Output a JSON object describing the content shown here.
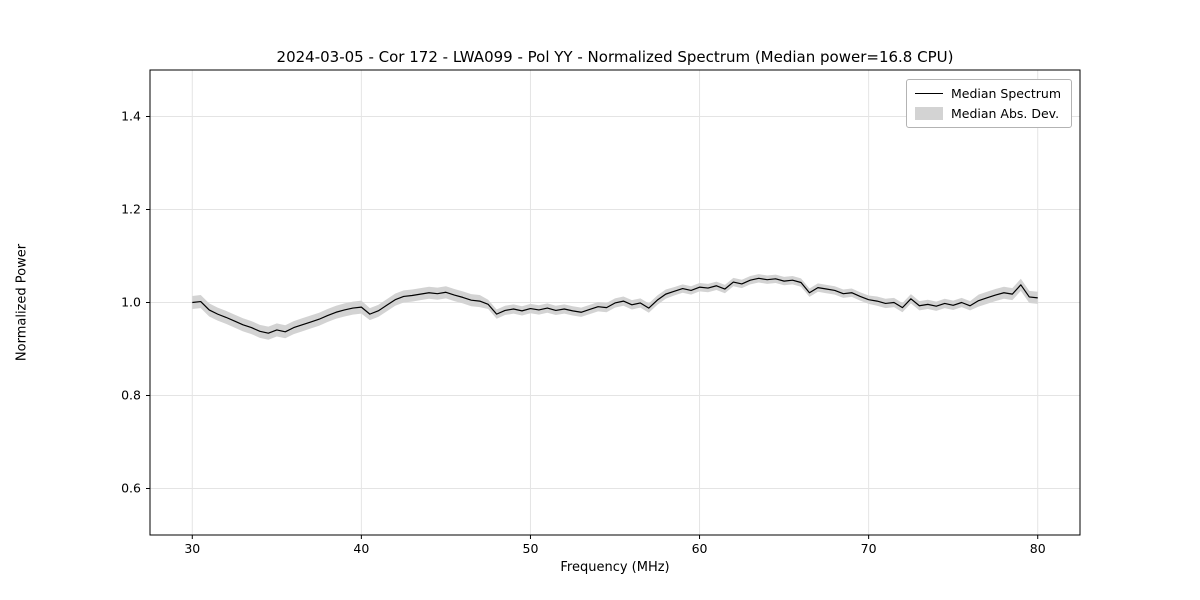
{
  "chart_data": {
    "type": "line",
    "title": "2024-03-05 - Cor 172 - LWA099 - Pol YY - Normalized Spectrum (Median power=16.8 CPU)",
    "xlabel": "Frequency (MHz)",
    "ylabel": "Normalized Power",
    "xlim": [
      27.5,
      82.5
    ],
    "ylim": [
      0.5,
      1.5
    ],
    "xticks": [
      30,
      40,
      50,
      60,
      70,
      80
    ],
    "yticks": [
      0.6,
      0.8,
      1.0,
      1.2,
      1.4
    ],
    "grid": true,
    "legend_position": "upper right",
    "series": [
      {
        "name": "Median Spectrum",
        "type": "line",
        "color": "#000000",
        "x": [
          30.0,
          30.5,
          31.0,
          31.5,
          32.0,
          32.5,
          33.0,
          33.5,
          34.0,
          34.5,
          35.0,
          35.5,
          36.0,
          36.5,
          37.0,
          37.5,
          38.0,
          38.5,
          39.0,
          39.5,
          40.0,
          40.5,
          41.0,
          41.5,
          42.0,
          42.5,
          43.0,
          43.5,
          44.0,
          44.5,
          45.0,
          45.5,
          46.0,
          46.5,
          47.0,
          47.5,
          48.0,
          48.5,
          49.0,
          49.5,
          50.0,
          50.5,
          51.0,
          51.5,
          52.0,
          52.5,
          53.0,
          53.5,
          54.0,
          54.5,
          55.0,
          55.5,
          56.0,
          56.5,
          57.0,
          57.5,
          58.0,
          58.5,
          59.0,
          59.5,
          60.0,
          60.5,
          61.0,
          61.5,
          62.0,
          62.5,
          63.0,
          63.5,
          64.0,
          64.5,
          65.0,
          65.5,
          66.0,
          66.5,
          67.0,
          67.5,
          68.0,
          68.5,
          69.0,
          69.5,
          70.0,
          70.5,
          71.0,
          71.5,
          72.0,
          72.5,
          73.0,
          73.5,
          74.0,
          74.5,
          75.0,
          75.5,
          76.0,
          76.5,
          77.0,
          77.5,
          78.0,
          78.5,
          79.0,
          79.5,
          80.0
        ],
        "y": [
          1.0,
          1.002,
          0.984,
          0.975,
          0.968,
          0.96,
          0.952,
          0.946,
          0.938,
          0.934,
          0.941,
          0.937,
          0.946,
          0.952,
          0.958,
          0.964,
          0.972,
          0.979,
          0.984,
          0.988,
          0.99,
          0.975,
          0.982,
          0.994,
          1.006,
          1.013,
          1.015,
          1.018,
          1.021,
          1.019,
          1.022,
          1.016,
          1.011,
          1.005,
          1.003,
          0.996,
          0.975,
          0.983,
          0.986,
          0.982,
          0.987,
          0.984,
          0.988,
          0.983,
          0.986,
          0.982,
          0.979,
          0.985,
          0.991,
          0.989,
          0.999,
          1.003,
          0.995,
          0.999,
          0.988,
          1.005,
          1.018,
          1.024,
          1.03,
          1.026,
          1.033,
          1.031,
          1.036,
          1.029,
          1.044,
          1.04,
          1.048,
          1.052,
          1.049,
          1.051,
          1.046,
          1.048,
          1.043,
          1.021,
          1.032,
          1.029,
          1.026,
          1.019,
          1.021,
          1.013,
          1.006,
          1.003,
          0.998,
          1.0,
          0.989,
          1.008,
          0.993,
          0.996,
          0.992,
          0.998,
          0.994,
          1.0,
          0.993,
          1.004,
          1.01,
          1.016,
          1.021,
          1.018,
          1.038,
          1.012,
          1.01
        ]
      },
      {
        "name": "Median Abs. Dev.",
        "type": "band",
        "color": "#d3d3d3",
        "mad": [
          0.014,
          0.014,
          0.014,
          0.014,
          0.014,
          0.014,
          0.014,
          0.014,
          0.014,
          0.014,
          0.014,
          0.014,
          0.014,
          0.014,
          0.014,
          0.014,
          0.014,
          0.014,
          0.014,
          0.014,
          0.014,
          0.013,
          0.013,
          0.013,
          0.013,
          0.013,
          0.013,
          0.013,
          0.013,
          0.013,
          0.013,
          0.013,
          0.013,
          0.013,
          0.013,
          0.01,
          0.01,
          0.01,
          0.01,
          0.01,
          0.01,
          0.01,
          0.01,
          0.01,
          0.01,
          0.01,
          0.01,
          0.01,
          0.01,
          0.01,
          0.01,
          0.01,
          0.01,
          0.01,
          0.01,
          0.01,
          0.01,
          0.009,
          0.009,
          0.009,
          0.009,
          0.009,
          0.009,
          0.009,
          0.009,
          0.009,
          0.009,
          0.009,
          0.009,
          0.009,
          0.009,
          0.009,
          0.009,
          0.009,
          0.009,
          0.009,
          0.009,
          0.009,
          0.009,
          0.009,
          0.009,
          0.01,
          0.01,
          0.01,
          0.01,
          0.01,
          0.01,
          0.01,
          0.01,
          0.01,
          0.01,
          0.01,
          0.01,
          0.013,
          0.013,
          0.013,
          0.013,
          0.013,
          0.013,
          0.013,
          0.013
        ]
      }
    ]
  },
  "colors": {
    "background": "#ffffff",
    "axis": "#000000",
    "grid": "#e4e4e4",
    "line": "#000000",
    "band": "#d3d3d3",
    "tick_text": "#000000"
  }
}
